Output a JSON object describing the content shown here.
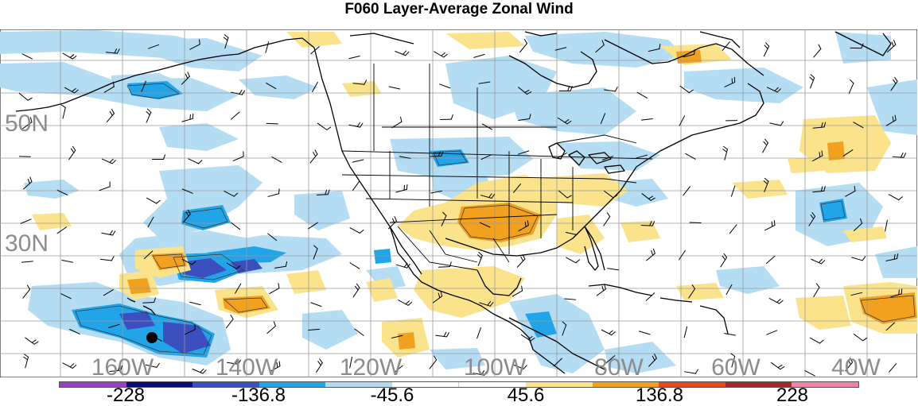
{
  "title": "F060 Layer-Average Zonal Wind",
  "latitude_labels": [
    "50N",
    "30N"
  ],
  "longitude_labels": [
    "160W",
    "140W",
    "120W",
    "100W",
    "80W",
    "60W",
    "40W"
  ],
  "colorbar": {
    "colors": [
      "#9b3fc6",
      "#0a0a7a",
      "#3b4fbf",
      "#22a5e8",
      "#b4dcf3",
      "#ffffff",
      "#ffffff",
      "#fbe38c",
      "#f2a11e",
      "#e7491a",
      "#a42828",
      "#ee82a8"
    ],
    "tick_labels": [
      "-228",
      "-136.8",
      "-45.6",
      "45.6",
      "136.8",
      "228"
    ]
  },
  "palette": {
    "light_blue": "#b4dcf3",
    "mid_blue": "#22a5e8",
    "dark_blue": "#3b4fbf",
    "yellow": "#fbe38c",
    "orange": "#f2a11e",
    "grid": "#9a9a9a",
    "coast": "#000000"
  },
  "marker": {
    "name": "station-dot",
    "color": "#000000"
  }
}
